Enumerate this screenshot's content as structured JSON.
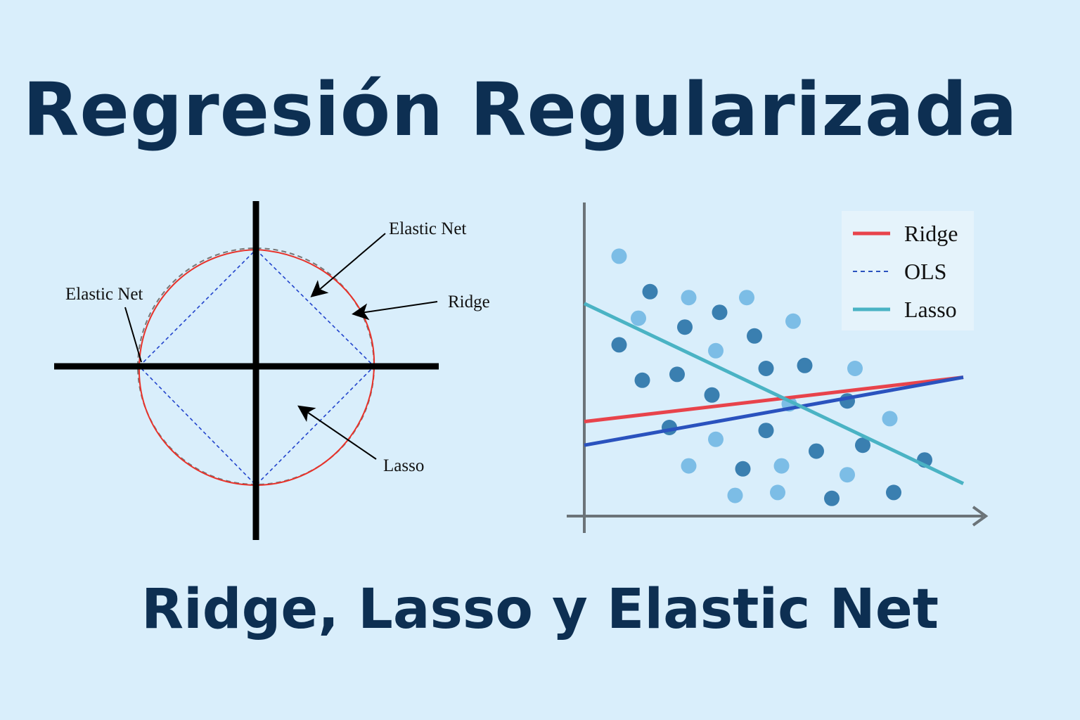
{
  "title": "Regresión Regularizada",
  "subtitle": "Ridge, Lasso y Elastic Net",
  "constraint_diagram": {
    "labels": {
      "elastic_net_top": "Elastic Net",
      "elastic_net_left": "Elastic Net",
      "ridge": "Ridge",
      "lasso": "Lasso"
    },
    "colors": {
      "ridge_curve": "#e8322a",
      "lasso_diamond": "#2244cc",
      "outer_circle": "#777777",
      "axes": "#000000"
    }
  },
  "chart_data": {
    "type": "scatter",
    "legend": {
      "position": "top-right",
      "entries": [
        {
          "name": "Ridge",
          "color": "#e8434b",
          "style": "solid"
        },
        {
          "name": "OLS",
          "color": "#2a52be",
          "style": "dashed"
        },
        {
          "name": "Lasso",
          "color": "#4ab3c4",
          "style": "solid"
        }
      ]
    },
    "xlim": [
      0,
      100
    ],
    "ylim": [
      0,
      100
    ],
    "point_colors": {
      "dark": "#3a7fb0",
      "light": "#7cbde6"
    },
    "points": [
      {
        "x": 9,
        "y": 88,
        "tone": "light"
      },
      {
        "x": 17,
        "y": 76,
        "tone": "dark"
      },
      {
        "x": 27,
        "y": 74,
        "tone": "light"
      },
      {
        "x": 42,
        "y": 74,
        "tone": "light"
      },
      {
        "x": 14,
        "y": 67,
        "tone": "light"
      },
      {
        "x": 26,
        "y": 64,
        "tone": "dark"
      },
      {
        "x": 35,
        "y": 69,
        "tone": "dark"
      },
      {
        "x": 54,
        "y": 66,
        "tone": "light"
      },
      {
        "x": 9,
        "y": 58,
        "tone": "dark"
      },
      {
        "x": 44,
        "y": 61,
        "tone": "dark"
      },
      {
        "x": 34,
        "y": 56,
        "tone": "light"
      },
      {
        "x": 15,
        "y": 46,
        "tone": "dark"
      },
      {
        "x": 24,
        "y": 48,
        "tone": "dark"
      },
      {
        "x": 47,
        "y": 50,
        "tone": "dark"
      },
      {
        "x": 57,
        "y": 51,
        "tone": "dark"
      },
      {
        "x": 70,
        "y": 50,
        "tone": "light"
      },
      {
        "x": 33,
        "y": 41,
        "tone": "dark"
      },
      {
        "x": 68,
        "y": 39,
        "tone": "dark"
      },
      {
        "x": 53,
        "y": 38,
        "tone": "light"
      },
      {
        "x": 79,
        "y": 33,
        "tone": "light"
      },
      {
        "x": 22,
        "y": 30,
        "tone": "dark"
      },
      {
        "x": 34,
        "y": 26,
        "tone": "light"
      },
      {
        "x": 47,
        "y": 29,
        "tone": "dark"
      },
      {
        "x": 72,
        "y": 24,
        "tone": "dark"
      },
      {
        "x": 60,
        "y": 22,
        "tone": "dark"
      },
      {
        "x": 27,
        "y": 17,
        "tone": "light"
      },
      {
        "x": 41,
        "y": 16,
        "tone": "dark"
      },
      {
        "x": 51,
        "y": 17,
        "tone": "light"
      },
      {
        "x": 88,
        "y": 19,
        "tone": "dark"
      },
      {
        "x": 68,
        "y": 14,
        "tone": "light"
      },
      {
        "x": 39,
        "y": 7,
        "tone": "light"
      },
      {
        "x": 50,
        "y": 8,
        "tone": "light"
      },
      {
        "x": 64,
        "y": 6,
        "tone": "dark"
      },
      {
        "x": 80,
        "y": 8,
        "tone": "dark"
      }
    ],
    "lines": [
      {
        "name": "Ridge",
        "x": [
          0,
          98
        ],
        "y": [
          32,
          47
        ],
        "color": "#e8434b"
      },
      {
        "name": "OLS",
        "x": [
          0,
          98
        ],
        "y": [
          24,
          47
        ],
        "color": "#2a52be"
      },
      {
        "name": "Lasso",
        "x": [
          0,
          98
        ],
        "y": [
          72,
          11
        ],
        "color": "#4ab3c4"
      }
    ]
  }
}
